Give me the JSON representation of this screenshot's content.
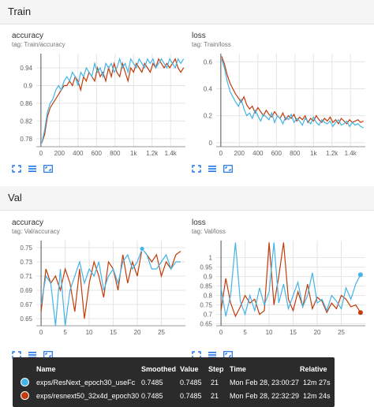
{
  "sections": {
    "train": "Train",
    "val": "Val"
  },
  "colors": {
    "series_a": "#42b4e6",
    "series_b": "#c23b0a",
    "grid": "#e4e4e4",
    "axis": "#999999",
    "icon": "#1a73e8"
  },
  "icons": [
    "fit-domain-icon",
    "data-table-icon",
    "expand-icon"
  ],
  "chart_data": [
    {
      "type": "line",
      "title": "accuracy",
      "tag": "tag: Train/accuracy",
      "xlim": [
        -50,
        1560
      ],
      "ylim": [
        0.762,
        0.972
      ],
      "xticks": [
        0,
        200,
        400,
        600,
        800,
        1000,
        1200,
        1400
      ],
      "xtick_labels": [
        "0",
        "200",
        "400",
        "600",
        "800",
        "1k",
        "1.2k",
        "1.4k"
      ],
      "yticks": [
        0.78,
        0.82,
        0.86,
        0.9,
        0.94
      ],
      "ytick_labels": [
        "0.78",
        "0.82",
        "0.86",
        "0.9",
        "0.94"
      ],
      "series": [
        {
          "x": [
            10,
            40,
            70,
            100,
            130,
            160,
            190,
            220,
            250,
            280,
            310,
            340,
            370,
            400,
            430,
            460,
            490,
            520,
            550,
            580,
            610,
            640,
            670,
            700,
            730,
            760,
            790,
            820,
            850,
            880,
            910,
            940,
            970,
            1000,
            1030,
            1060,
            1090,
            1120,
            1150,
            1180,
            1210,
            1240,
            1270,
            1300,
            1330,
            1360,
            1390,
            1420,
            1450,
            1480,
            1510,
            1540
          ],
          "y": [
            0.77,
            0.8,
            0.84,
            0.86,
            0.87,
            0.89,
            0.9,
            0.89,
            0.91,
            0.92,
            0.91,
            0.93,
            0.92,
            0.9,
            0.93,
            0.92,
            0.94,
            0.93,
            0.92,
            0.95,
            0.93,
            0.94,
            0.92,
            0.95,
            0.94,
            0.95,
            0.93,
            0.94,
            0.96,
            0.94,
            0.95,
            0.93,
            0.96,
            0.95,
            0.94,
            0.96,
            0.95,
            0.94,
            0.96,
            0.95,
            0.96,
            0.94,
            0.95,
            0.96,
            0.95,
            0.94,
            0.96,
            0.95,
            0.94,
            0.96,
            0.95,
            0.96
          ]
        },
        {
          "x": [
            10,
            40,
            70,
            100,
            130,
            160,
            190,
            220,
            250,
            280,
            310,
            340,
            370,
            400,
            430,
            460,
            490,
            520,
            550,
            580,
            610,
            640,
            670,
            700,
            730,
            760,
            790,
            820,
            850,
            880,
            910,
            940,
            970,
            1000,
            1030,
            1060,
            1090,
            1120,
            1150,
            1180,
            1210,
            1240,
            1270,
            1300,
            1330,
            1360,
            1390,
            1420,
            1450,
            1480,
            1510,
            1540
          ],
          "y": [
            0.77,
            0.79,
            0.83,
            0.85,
            0.86,
            0.87,
            0.88,
            0.89,
            0.9,
            0.9,
            0.91,
            0.9,
            0.92,
            0.91,
            0.89,
            0.92,
            0.91,
            0.93,
            0.92,
            0.91,
            0.94,
            0.92,
            0.93,
            0.91,
            0.94,
            0.92,
            0.95,
            0.93,
            0.92,
            0.95,
            0.93,
            0.91,
            0.94,
            0.93,
            0.95,
            0.94,
            0.93,
            0.95,
            0.94,
            0.93,
            0.95,
            0.94,
            0.96,
            0.95,
            0.94,
            0.95,
            0.94,
            0.95,
            0.96,
            0.94,
            0.93,
            0.94
          ]
        }
      ]
    },
    {
      "type": "line",
      "title": "loss",
      "tag": "tag: Train/loss",
      "xlim": [
        -50,
        1560
      ],
      "ylim": [
        -0.03,
        0.66
      ],
      "xticks": [
        0,
        200,
        400,
        600,
        800,
        1000,
        1200,
        1400
      ],
      "xtick_labels": [
        "0",
        "200",
        "400",
        "600",
        "800",
        "1k",
        "1.2k",
        "1.4k"
      ],
      "yticks": [
        0,
        0.2,
        0.4,
        0.6
      ],
      "ytick_labels": [
        "0",
        "0.2",
        "0.4",
        "0.6"
      ],
      "series": [
        {
          "x": [
            10,
            40,
            70,
            100,
            130,
            160,
            190,
            220,
            250,
            280,
            310,
            340,
            370,
            400,
            430,
            460,
            490,
            520,
            550,
            580,
            610,
            640,
            670,
            700,
            730,
            760,
            790,
            820,
            850,
            880,
            910,
            940,
            970,
            1000,
            1030,
            1060,
            1090,
            1120,
            1150,
            1180,
            1210,
            1240,
            1270,
            1300,
            1330,
            1360,
            1390,
            1420,
            1450,
            1480,
            1510,
            1540
          ],
          "y": [
            0.62,
            0.55,
            0.45,
            0.38,
            0.34,
            0.3,
            0.27,
            0.32,
            0.25,
            0.2,
            0.22,
            0.18,
            0.24,
            0.2,
            0.16,
            0.21,
            0.19,
            0.17,
            0.22,
            0.15,
            0.2,
            0.18,
            0.14,
            0.19,
            0.17,
            0.21,
            0.15,
            0.18,
            0.16,
            0.13,
            0.18,
            0.16,
            0.14,
            0.19,
            0.15,
            0.13,
            0.17,
            0.15,
            0.14,
            0.16,
            0.12,
            0.15,
            0.17,
            0.13,
            0.14,
            0.16,
            0.12,
            0.15,
            0.13,
            0.14,
            0.12,
            0.11
          ]
        },
        {
          "x": [
            10,
            40,
            70,
            100,
            130,
            160,
            190,
            220,
            250,
            280,
            310,
            340,
            370,
            400,
            430,
            460,
            490,
            520,
            550,
            580,
            610,
            640,
            670,
            700,
            730,
            760,
            790,
            820,
            850,
            880,
            910,
            940,
            970,
            1000,
            1030,
            1060,
            1090,
            1120,
            1150,
            1180,
            1210,
            1240,
            1270,
            1300,
            1330,
            1360,
            1390,
            1420,
            1450,
            1480,
            1510,
            1540
          ],
          "y": [
            0.64,
            0.58,
            0.5,
            0.44,
            0.4,
            0.36,
            0.33,
            0.3,
            0.34,
            0.28,
            0.25,
            0.27,
            0.22,
            0.26,
            0.23,
            0.2,
            0.24,
            0.21,
            0.19,
            0.23,
            0.2,
            0.18,
            0.22,
            0.17,
            0.2,
            0.18,
            0.21,
            0.16,
            0.19,
            0.17,
            0.2,
            0.15,
            0.18,
            0.16,
            0.2,
            0.17,
            0.15,
            0.18,
            0.16,
            0.19,
            0.15,
            0.17,
            0.14,
            0.18,
            0.16,
            0.14,
            0.17,
            0.15,
            0.16,
            0.17,
            0.15,
            0.16
          ]
        }
      ]
    },
    {
      "type": "line",
      "title": "accuracy",
      "tag": "tag: Val/accuracy",
      "xlim": [
        -1,
        30
      ],
      "ylim": [
        0.64,
        0.76
      ],
      "xticks": [
        0,
        5,
        10,
        15,
        20,
        25
      ],
      "xtick_labels": [
        "0",
        "5",
        "10",
        "15",
        "20",
        "25"
      ],
      "yticks": [
        0.65,
        0.67,
        0.69,
        0.71,
        0.73,
        0.75
      ],
      "ytick_labels": [
        "0.65",
        "0.67",
        "0.69",
        "0.71",
        "0.73",
        "0.75"
      ],
      "series": [
        {
          "x": [
            0,
            1,
            2,
            3,
            4,
            5,
            6,
            7,
            8,
            9,
            10,
            11,
            12,
            13,
            14,
            15,
            16,
            17,
            18,
            19,
            20,
            21,
            22,
            23,
            24,
            25,
            26,
            27,
            28,
            29
          ],
          "y": [
            0.67,
            0.71,
            0.7,
            0.64,
            0.72,
            0.64,
            0.69,
            0.71,
            0.73,
            0.7,
            0.72,
            0.71,
            0.73,
            0.69,
            0.71,
            0.72,
            0.7,
            0.73,
            0.74,
            0.72,
            0.73,
            0.7485,
            0.74,
            0.72,
            0.72,
            0.73,
            0.74,
            0.72,
            0.73,
            0.73
          ]
        },
        {
          "x": [
            0,
            1,
            2,
            3,
            4,
            5,
            6,
            7,
            8,
            9,
            10,
            11,
            12,
            13,
            14,
            15,
            16,
            17,
            18,
            19,
            20,
            21,
            22,
            23,
            24,
            25,
            26,
            27,
            28,
            29
          ],
          "y": [
            0.66,
            0.72,
            0.7,
            0.71,
            0.69,
            0.72,
            0.7,
            0.66,
            0.72,
            0.65,
            0.7,
            0.73,
            0.71,
            0.68,
            0.73,
            0.72,
            0.69,
            0.74,
            0.7,
            0.73,
            0.71,
            0.7485,
            0.74,
            0.73,
            0.74,
            0.71,
            0.73,
            0.72,
            0.74,
            0.745
          ]
        }
      ]
    },
    {
      "type": "line",
      "title": "loss",
      "tag": "tag: Val/loss",
      "xlim": [
        -1,
        30
      ],
      "ylim": [
        0.64,
        1.09
      ],
      "xticks": [
        0,
        5,
        10,
        15,
        20,
        25
      ],
      "xtick_labels": [
        "0",
        "5",
        "10",
        "15",
        "20",
        "25"
      ],
      "yticks": [
        0.65,
        0.7,
        0.75,
        0.8,
        0.85,
        0.9,
        0.95,
        1
      ],
      "ytick_labels": [
        "0.65",
        "0.7",
        "0.75",
        "0.8",
        "0.85",
        "0.9",
        "0.95",
        "1"
      ],
      "series": [
        {
          "x": [
            0,
            1,
            2,
            3,
            4,
            5,
            6,
            7,
            8,
            9,
            10,
            11,
            12,
            13,
            14,
            15,
            16,
            17,
            18,
            19,
            20,
            21,
            22,
            23,
            24,
            25,
            26,
            27,
            28,
            29
          ],
          "y": [
            0.84,
            0.69,
            0.8,
            1.08,
            0.77,
            0.7,
            0.8,
            0.72,
            0.84,
            0.75,
            0.82,
            1.08,
            0.76,
            0.86,
            0.73,
            0.8,
            0.87,
            0.74,
            0.8,
            0.92,
            0.76,
            0.78,
            0.72,
            0.8,
            0.77,
            0.73,
            0.84,
            0.78,
            0.86,
            0.91
          ]
        },
        {
          "x": [
            0,
            1,
            2,
            3,
            4,
            5,
            6,
            7,
            8,
            9,
            10,
            11,
            12,
            13,
            14,
            15,
            16,
            17,
            18,
            19,
            20,
            21,
            22,
            23,
            24,
            25,
            26,
            27,
            28,
            29
          ],
          "y": [
            0.72,
            0.89,
            0.76,
            0.69,
            0.74,
            0.8,
            0.76,
            0.78,
            0.7,
            0.72,
            1.08,
            0.75,
            0.9,
            1.08,
            0.78,
            0.72,
            0.82,
            0.74,
            0.86,
            0.73,
            0.79,
            0.77,
            0.71,
            0.76,
            0.73,
            0.8,
            0.78,
            0.74,
            0.75,
            0.71
          ]
        }
      ]
    }
  ],
  "tooltip": {
    "headers": {
      "name": "Name",
      "smoothed": "Smoothed",
      "value": "Value",
      "step": "Step",
      "time": "Time",
      "relative": "Relative"
    },
    "rows": [
      {
        "name": "exps/ResNext_epoch30_useFc",
        "smoothed": "0.7485",
        "value": "0.7485",
        "step": "21",
        "time": "Mon Feb 28, 23:00:27",
        "relative": "12m 27s"
      },
      {
        "name": "exps/resnext50_32x4d_epoch30",
        "smoothed": "0.7485",
        "value": "0.7485",
        "step": "21",
        "time": "Mon Feb 28, 22:32:29",
        "relative": "12m 24s"
      }
    ]
  }
}
